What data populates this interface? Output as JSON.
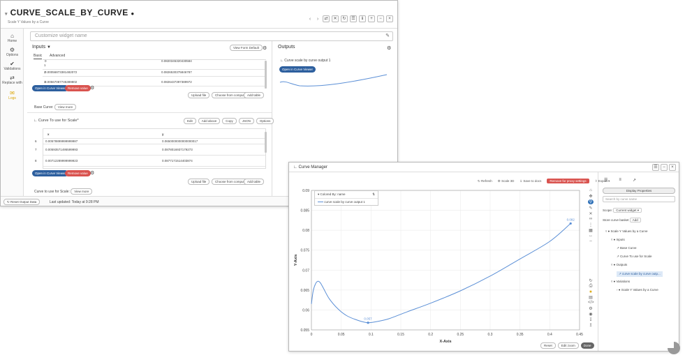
{
  "main": {
    "title": "CURVE_SCALE_BY_CURVE",
    "subtitle": "Scale Y Values by a Curve",
    "header_buttons": [
      "⇄",
      "✕",
      "↻",
      "☰",
      "ℹ",
      "+",
      "−",
      "×"
    ],
    "nav": [
      {
        "icon": "⌂",
        "label": "Home"
      },
      {
        "icon": "⚙",
        "label": "Options"
      },
      {
        "icon": "✔",
        "label": "Validations"
      },
      {
        "icon": "⇄",
        "label": "Replace with"
      },
      {
        "icon": "✉",
        "label": "Logs"
      }
    ],
    "widget_name_placeholder": "Customize widget name",
    "inputs_label": "Inputs",
    "view_form_default": "View Form Default",
    "tabs": [
      "Basic",
      "Advanced"
    ],
    "table1_rows": [
      {
        "idx": "1",
        "x": "0",
        "y": "0.0820345320430584"
      },
      {
        "idx": "2",
        "x": "0.00056873381482072",
        "y": "0.0826530375846787"
      },
      {
        "idx": "3",
        "x": "0.00567087745389802",
        "y": "0.0826437397389972"
      }
    ],
    "open_curve_viewer": "Open in Curve Viewer",
    "remove_value": "Remove value",
    "upload_file": "Upload file",
    "choose_from_computer": "Choose from computer",
    "add_table": "Add table",
    "base_curve_label": "Base Curve:",
    "view_more": "View more",
    "curve_scale_label": "Curve To use for Scale",
    "curve_scale_tools": [
      "Edit",
      "Add above",
      "Copy",
      "JSON",
      "Options"
    ],
    "table2_header": {
      "x": "x",
      "y": "y"
    },
    "table2_rows": [
      {
        "idx": "6",
        "x": "0.00578899999999987",
        "y": "0.0650000000000000017"
      },
      {
        "idx": "7",
        "x": "0.00593571495599993",
        "y": "0.0878016937179273"
      },
      {
        "idx": "8",
        "x": "0.00712289999999923",
        "y": "0.0877171514403874"
      }
    ],
    "curve_use_label": "Curve to use for Scale:",
    "reset_output": "Reset Output Data",
    "last_updated": "Last updated: Today at 9:28 PM",
    "outputs_label": "Outputs",
    "output_curve_title": "Curve scale by curve output 1"
  },
  "curve_manager": {
    "title": "Curve Manager",
    "window_buttons": [
      "☰",
      "−",
      "×"
    ],
    "toolbar": [
      "Refresh",
      "Scale 3D",
      "Save to docs",
      "Remove for proxy settings",
      "Export"
    ],
    "legend_header": "Colored By: name",
    "legend_series": "curve scale by curve output 1",
    "right_tabs": [
      "☰",
      "≡",
      "↗"
    ],
    "display_button": "Display Properties",
    "search_placeholder": "Search by curve name",
    "scope_label": "Scope:",
    "scope_value": "Current widget",
    "basket_label": "Store curve basket",
    "basket_btn": "Add",
    "tree": [
      {
        "text": "Scale Y Values by a Curve",
        "indent": 0
      },
      {
        "text": "Inputs",
        "indent": 1
      },
      {
        "text": "Base Curve",
        "indent": 2
      },
      {
        "text": "Curve To use for Scale",
        "indent": 2
      },
      {
        "text": "Outputs",
        "indent": 1
      },
      {
        "text": "curve scale by curve outp...",
        "indent": 2,
        "selected": true
      },
      {
        "text": "Variations",
        "indent": 1
      },
      {
        "text": "Scale Y Values by a Curve",
        "indent": 2
      }
    ],
    "bottom_buttons": [
      "Reset",
      "Edit zoom",
      "Done"
    ]
  },
  "chart_data": {
    "type": "line",
    "xlabel": "X-Axis",
    "ylabel": "Y-Axis",
    "xlim": [
      0,
      0.45
    ],
    "ylim": [
      0.055,
      0.09
    ],
    "x_ticks": [
      "0",
      "0.05",
      "0.1",
      "0.15",
      "0.2",
      "0.25",
      "0.3",
      "0.35",
      "0.4",
      "0.45"
    ],
    "y_ticks": [
      "0.055",
      "0.06",
      "0.065",
      "0.07",
      "0.075",
      "0.08",
      "0.085",
      "0.09"
    ],
    "series": [
      {
        "name": "curve scale by curve output 1",
        "color": "#5b8fd6",
        "x": [
          0,
          0.003,
          0.007,
          0.011,
          0.015,
          0.02,
          0.03,
          0.045,
          0.06,
          0.08,
          0.095,
          0.11,
          0.13,
          0.16,
          0.2,
          0.25,
          0.3,
          0.35,
          0.4,
          0.435
        ],
        "y": [
          0.0615,
          0.0648,
          0.0666,
          0.0672,
          0.0668,
          0.0655,
          0.0628,
          0.0602,
          0.0585,
          0.0573,
          0.0568,
          0.0571,
          0.0578,
          0.0595,
          0.0617,
          0.0648,
          0.0685,
          0.0728,
          0.0772,
          0.0817
        ]
      }
    ],
    "annotations": [
      {
        "x": 0.095,
        "y": 0.0568,
        "text": "0.057"
      },
      {
        "x": 0.435,
        "y": 0.0817,
        "text": "0.082"
      }
    ],
    "grid": true
  }
}
